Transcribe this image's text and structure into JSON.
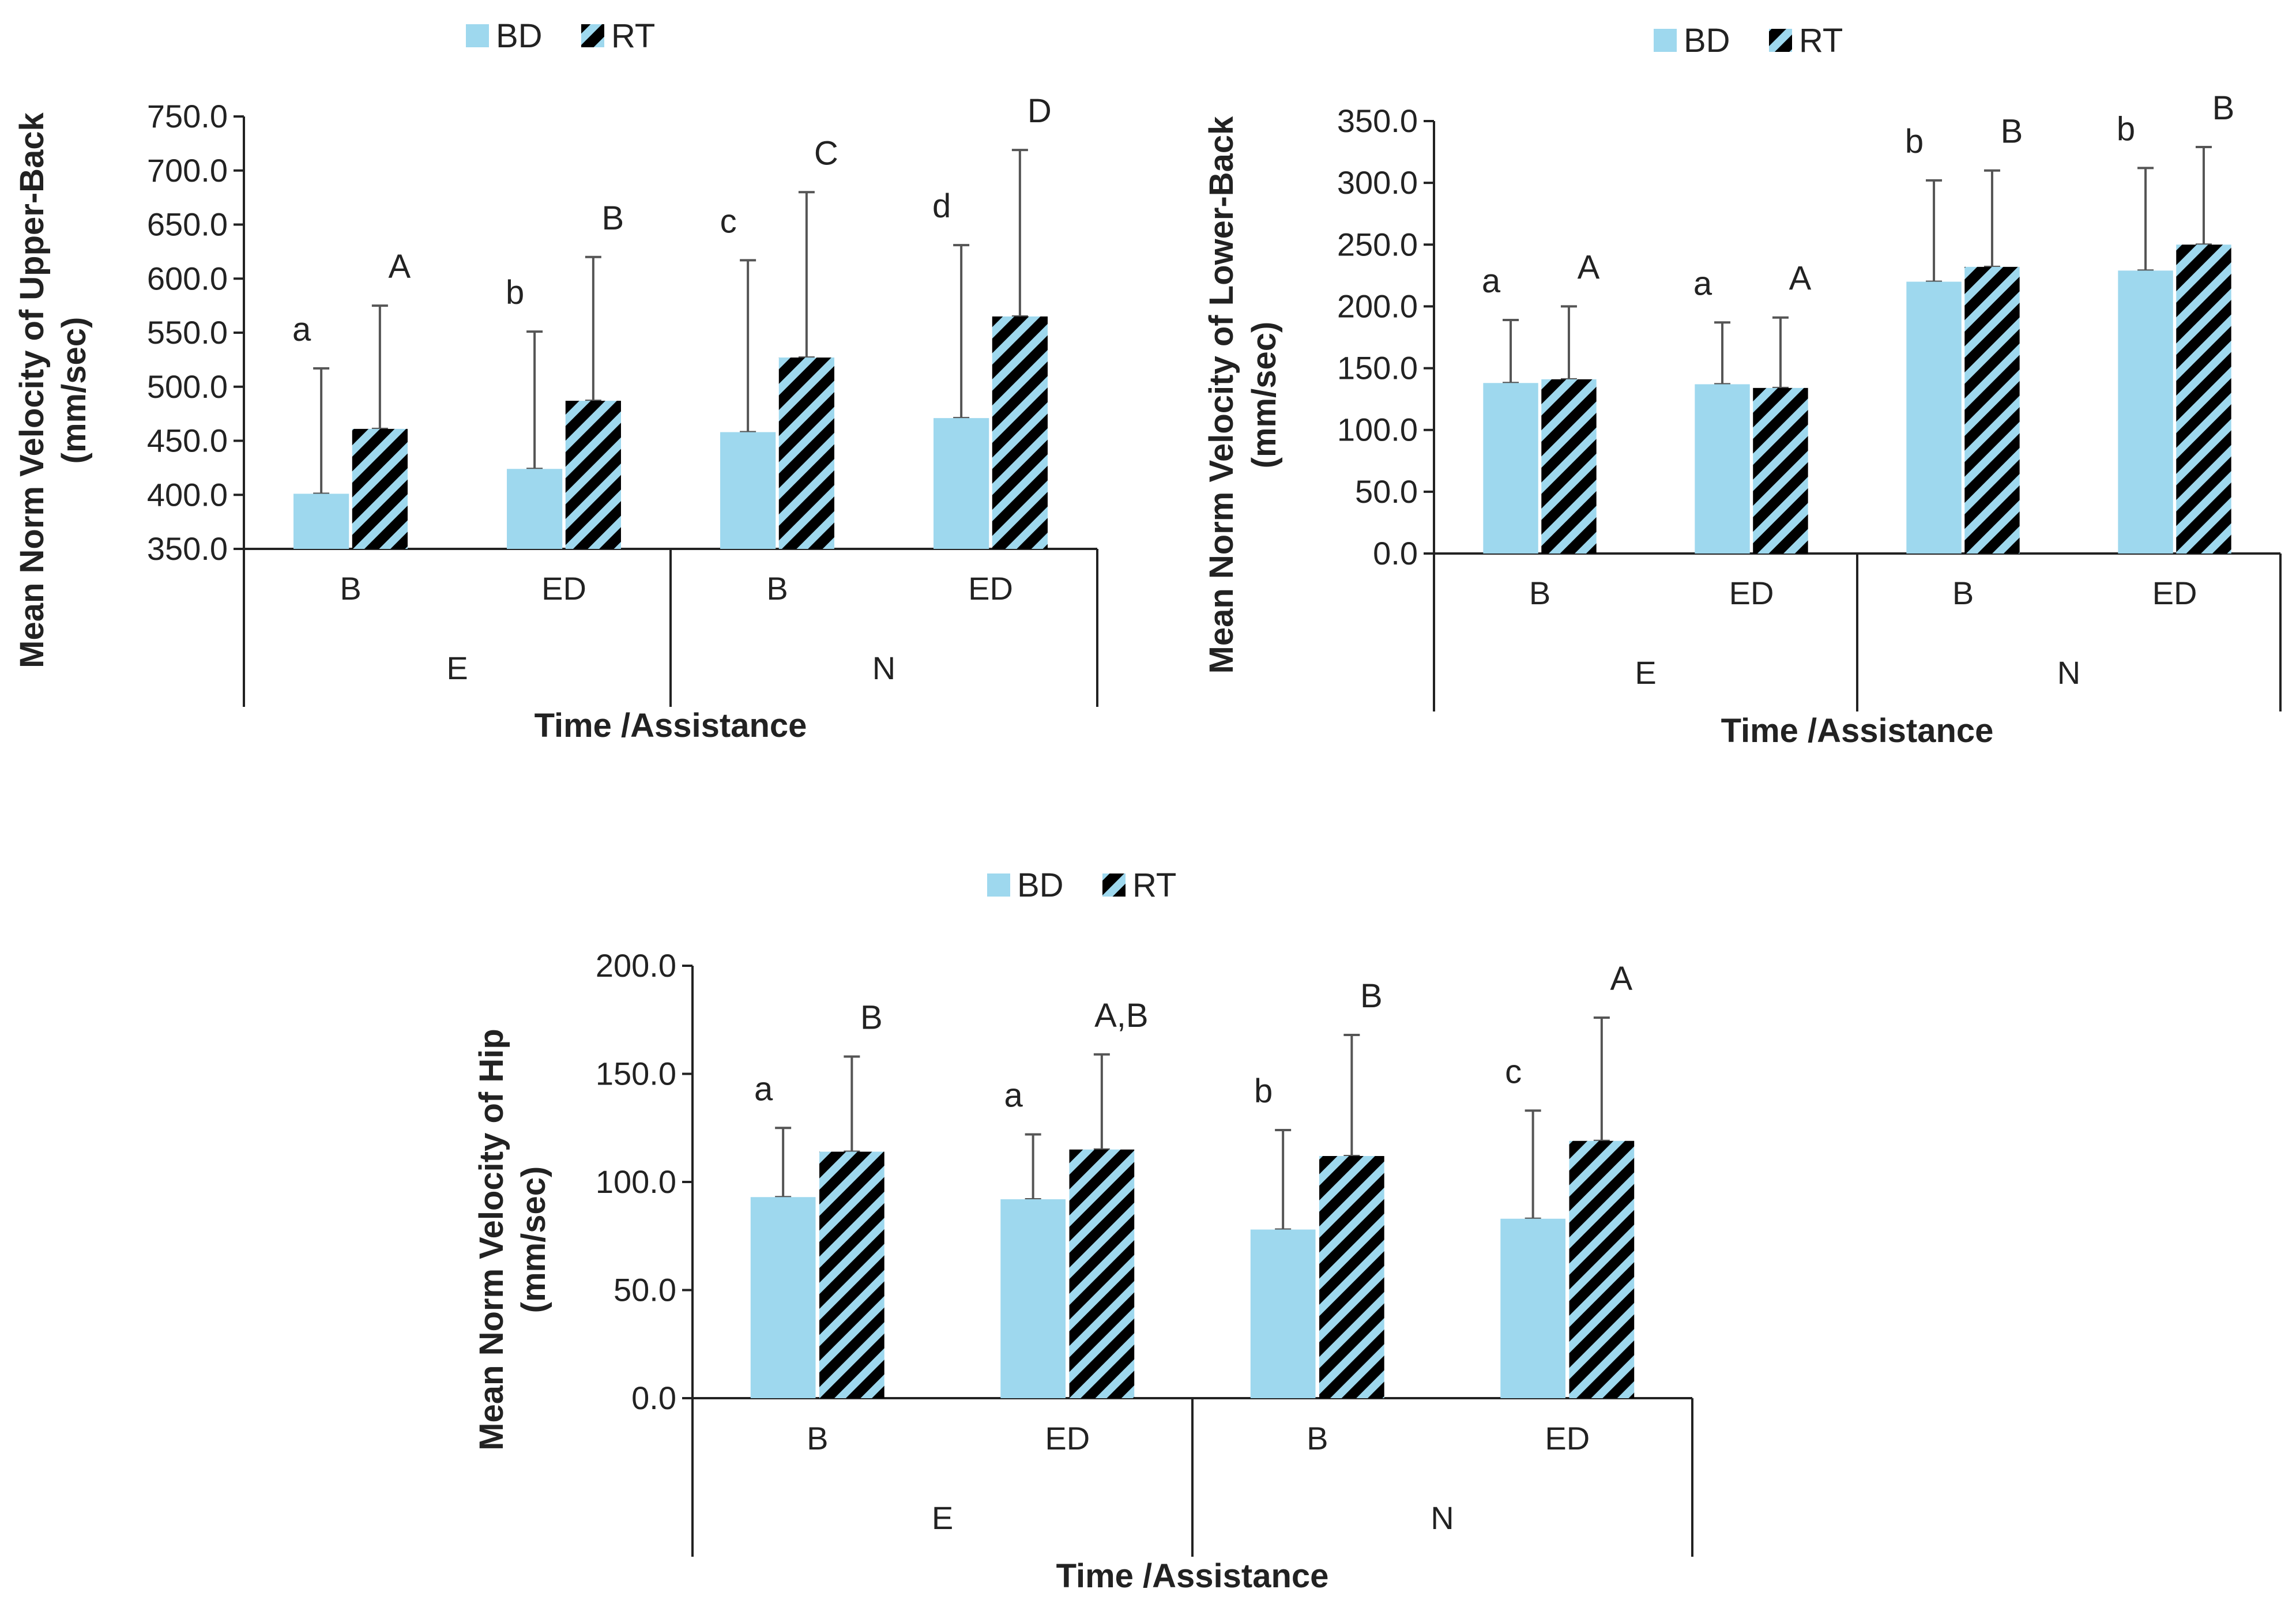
{
  "colors": {
    "bd": "#9ed8ee",
    "rt_stripe": "#000000",
    "axis": "#222222"
  },
  "chart_data": [
    {
      "type": "bar",
      "title": "",
      "ylabel": [
        "Mean Norm Velocity of Upper-Back",
        "(mm/sec)"
      ],
      "xlabel": "Time /Assistance",
      "legend": [
        "BD",
        "RT"
      ],
      "ylim": [
        350,
        750
      ],
      "yticks": [
        "350.0",
        "400.0",
        "450.0",
        "500.0",
        "550.0",
        "600.0",
        "650.0",
        "700.0",
        "750.0"
      ],
      "yticks_values": [
        350,
        400,
        450,
        500,
        550,
        600,
        650,
        700,
        750
      ],
      "categories": [
        "B",
        "ED",
        "B",
        "ED"
      ],
      "groups": [
        "E",
        "N"
      ],
      "series": [
        {
          "name": "BD",
          "values": [
            401,
            424,
            458,
            471
          ],
          "err_top": [
            517,
            551,
            617,
            631
          ],
          "letters": [
            "a",
            "b",
            "c",
            "d"
          ]
        },
        {
          "name": "RT",
          "values": [
            461,
            487,
            527,
            565
          ],
          "err_top": [
            575,
            620,
            680,
            719
          ],
          "letters": [
            "A",
            "B",
            "C",
            "D"
          ]
        }
      ]
    },
    {
      "type": "bar",
      "title": "",
      "ylabel": [
        "Mean Norm Velocity of Lower-Back",
        "(mm/sec)"
      ],
      "xlabel": "Time /Assistance",
      "legend": [
        "BD",
        "RT"
      ],
      "ylim": [
        0,
        350
      ],
      "yticks": [
        "0.0",
        "50.0",
        "100.0",
        "150.0",
        "200.0",
        "250.0",
        "300.0",
        "350.0"
      ],
      "yticks_values": [
        0,
        50,
        100,
        150,
        200,
        250,
        300,
        350
      ],
      "categories": [
        "B",
        "ED",
        "B",
        "ED"
      ],
      "groups": [
        "E",
        "N"
      ],
      "series": [
        {
          "name": "BD",
          "values": [
            138,
            137,
            220,
            229
          ],
          "err_top": [
            189,
            187,
            302,
            312
          ],
          "letters": [
            "a",
            "a",
            "b",
            "b"
          ]
        },
        {
          "name": "RT",
          "values": [
            141,
            134,
            232,
            250
          ],
          "err_top": [
            200,
            191,
            310,
            329
          ],
          "letters": [
            "A",
            "A",
            "B",
            "B"
          ]
        }
      ]
    },
    {
      "type": "bar",
      "title": "",
      "ylabel": [
        "Mean Norm Velocity of Hip",
        "(mm/sec)"
      ],
      "xlabel": "Time /Assistance",
      "legend": [
        "BD",
        "RT"
      ],
      "ylim": [
        0,
        200
      ],
      "yticks": [
        "0.0",
        "50.0",
        "100.0",
        "150.0",
        "200.0"
      ],
      "yticks_values": [
        0,
        50,
        100,
        150,
        200
      ],
      "categories": [
        "B",
        "ED",
        "B",
        "ED"
      ],
      "groups": [
        "E",
        "N"
      ],
      "series": [
        {
          "name": "BD",
          "values": [
            93,
            92,
            78,
            83
          ],
          "err_top": [
            125,
            122,
            124,
            133
          ],
          "letters": [
            "a",
            "a",
            "b",
            "c"
          ]
        },
        {
          "name": "RT",
          "values": [
            114,
            115,
            112,
            119
          ],
          "err_top": [
            158,
            159,
            168,
            176
          ],
          "letters": [
            "B",
            "A,B",
            "B",
            "A"
          ]
        }
      ]
    }
  ]
}
